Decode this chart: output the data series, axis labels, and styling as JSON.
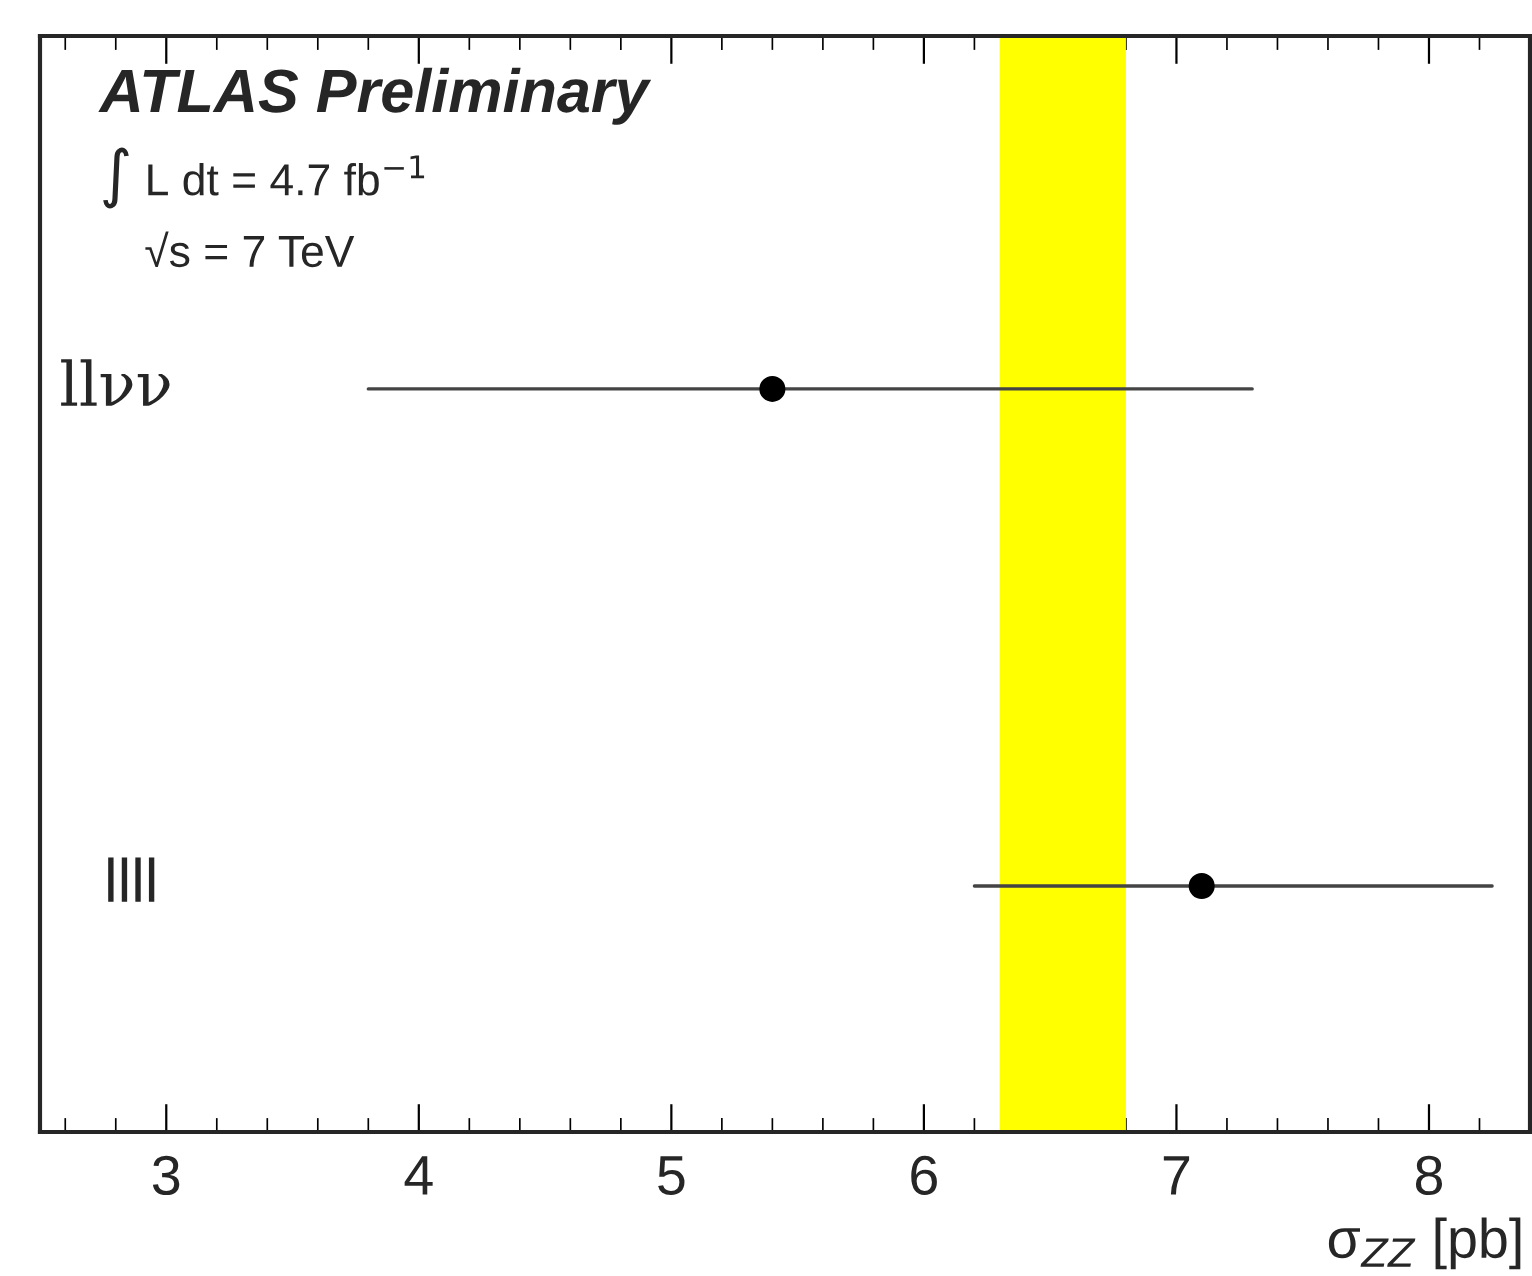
{
  "chart_data": {
    "type": "scatter",
    "orientation": "horizontal",
    "xlabel": "σ$_{ZZ}$ [pb]",
    "categories": [
      "llνν",
      "llll"
    ],
    "series": [
      {
        "color": "#000000",
        "values": [
          5.4,
          7.1
        ],
        "errors": [
          [
            3.8,
            7.3
          ],
          [
            6.2,
            8.25
          ]
        ]
      }
    ],
    "xlim": [
      2.5,
      8.4
    ],
    "xticks": [
      3,
      4,
      5,
      6,
      7,
      8
    ],
    "grid": false,
    "marker": "circle",
    "bands": [
      {
        "axis": "x",
        "from": 6.3,
        "to": 6.8,
        "color": "#ffff00"
      }
    ],
    "annotations": [
      "ATLAS Preliminary",
      "∫ L dt = 4.7 fb$^{−1}$",
      "√s = 7 TeV"
    ]
  }
}
